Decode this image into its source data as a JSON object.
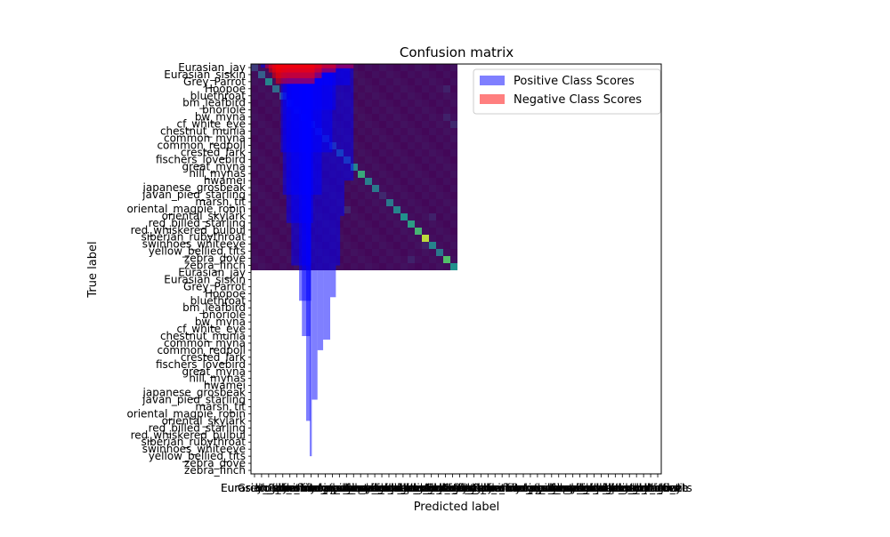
{
  "chart_data": {
    "type": "heatmap",
    "title": "Confusion matrix",
    "xlabel": "Predicted label",
    "ylabel": "True label",
    "grid": false,
    "legend_position": "top-right",
    "class_labels": [
      "Eurasian_jay",
      "Eurasian_siskin",
      "Grey_Parrot",
      "Hoopoe",
      "bluethroat",
      "bm_leafbird",
      "bnoriole",
      "bw_myna",
      "cf_white_eye",
      "chestnut_munia",
      "common_myna",
      "common_redpoll",
      "crested_lark",
      "fischers_lovebird",
      "great_myna",
      "hill_mynas",
      "hwamei",
      "japanese_grosbeak",
      "javan_pied_starling",
      "marsh_tit",
      "oriental_magpie_robin",
      "oriental_skylark",
      "red_billed_starling",
      "red_whiskered_bulbul",
      "siberian_rubythroat",
      "swinhoes_whiteeye",
      "yellow_bellied_tits",
      "zebra_dove",
      "zebra_finch"
    ],
    "x_ticks_note": "Eurasian_jay",
    "diagonal_intensity": [
      0.18,
      0.3,
      0.45,
      0.35,
      0.32,
      0.3,
      0.28,
      0.3,
      0.35,
      0.28,
      0.3,
      0.3,
      0.4,
      0.35,
      0.45,
      0.6,
      0.42,
      0.4,
      0.38,
      0.4,
      0.45,
      0.5,
      0.55,
      0.65,
      0.9,
      0.45,
      0.4,
      0.7,
      0.5
    ],
    "off_diagonal_hotspots": [
      {
        "row": 0,
        "col": 6,
        "value": 0.12
      },
      {
        "row": 3,
        "col": 27,
        "value": 0.1
      },
      {
        "row": 7,
        "col": 27,
        "value": 0.1
      },
      {
        "row": 8,
        "col": 28,
        "value": 0.12
      },
      {
        "row": 20,
        "col": 13,
        "value": 0.12
      },
      {
        "row": 18,
        "col": 18,
        "value": 0.12
      },
      {
        "row": 21,
        "col": 25,
        "value": 0.1
      },
      {
        "row": 27,
        "col": 22,
        "value": 0.1
      },
      {
        "row": 25,
        "col": 24,
        "value": 0.1
      }
    ],
    "overlay_series": [
      {
        "name": "Positive Class Scores",
        "color": "#0000ff",
        "opacity": 0.5,
        "bars": [
          {
            "x_start": 1.4,
            "x_end": 14.4,
            "y_end": 0.5
          },
          {
            "x_start": 5.5,
            "x_end": 14.0,
            "y_end": 3
          },
          {
            "x_start": 5.2,
            "x_end": 12.0,
            "y_end": 6.5
          },
          {
            "x_start": 4.2,
            "x_end": 11.5,
            "y_end": 12.5
          },
          {
            "x_start": 4.5,
            "x_end": 10.0,
            "y_end": 18.5
          },
          {
            "x_start": 5.0,
            "x_end": 8.8,
            "y_end": 22.5
          },
          {
            "x_start": 5.7,
            "x_end": 8.5,
            "y_end": 28.5
          },
          {
            "x_start": 6.8,
            "x_end": 8.5,
            "y_end": 33.5
          },
          {
            "x_start": 7.2,
            "x_end": 8.4,
            "y_end": 38.5
          },
          {
            "x_start": 7.8,
            "x_end": 8.4,
            "y_end": 50.5
          },
          {
            "x_start": 8.3,
            "x_end": 8.6,
            "y_end": 55.5
          },
          {
            "x_start": 8.6,
            "x_end": 9.4,
            "y_end": 47.5
          },
          {
            "x_start": 9.4,
            "x_end": 10.2,
            "y_end": 40.5
          },
          {
            "x_start": 10.2,
            "x_end": 11.2,
            "y_end": 39.0
          },
          {
            "x_start": 11.2,
            "x_end": 12.0,
            "y_end": 33.0
          },
          {
            "x_start": 12.0,
            "x_end": 12.6,
            "y_end": 28.5
          },
          {
            "x_start": 12.6,
            "x_end": 13.2,
            "y_end": 21.5
          },
          {
            "x_start": 13.2,
            "x_end": 14.5,
            "y_end": 16.5
          }
        ]
      },
      {
        "name": "Negative Class Scores",
        "color": "#ff0000",
        "opacity": 0.5,
        "bars": [
          {
            "x_start": 2.0,
            "x_end": 14.5,
            "y_end": 0.6
          },
          {
            "x_start": 2.5,
            "x_end": 12.0,
            "y_end": 1.2
          },
          {
            "x_start": 3.0,
            "x_end": 10.0,
            "y_end": 2.0
          },
          {
            "x_start": 3.5,
            "x_end": 9.0,
            "y_end": 2.8
          }
        ]
      }
    ],
    "legend": [
      "Positive Class Scores",
      "Negative Class Scores"
    ]
  },
  "colors": {
    "background": "#440154",
    "low": "#440154",
    "mid": "#21918c",
    "high": "#fde725",
    "positive": "#0000ff",
    "negative": "#ff0000"
  }
}
